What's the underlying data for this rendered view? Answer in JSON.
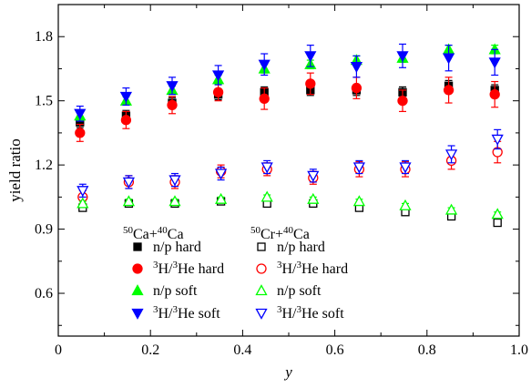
{
  "chart_data": {
    "type": "scatter",
    "xlabel": "y",
    "ylabel": "yield ratio",
    "xlim": [
      0,
      1.0
    ],
    "ylim": [
      0.4,
      1.95
    ],
    "xticks": [
      0,
      0.2,
      0.4,
      0.6,
      0.8,
      1.0
    ],
    "xtick_labels": [
      "0",
      "0.2",
      "0.4",
      "0.6",
      "0.8",
      "1.0"
    ],
    "yticks": [
      0.6,
      0.9,
      1.2,
      1.5,
      1.8
    ],
    "ytick_labels": [
      "0.6",
      "0.9",
      "1.2",
      "1.5",
      "1.8"
    ],
    "grid": false,
    "legend": {
      "placement": "bottom-left",
      "group_titles": [
        {
          "pre": "50",
          "main1": "Ca+",
          "sup2": "40",
          "main2": "Ca"
        },
        {
          "pre": "50",
          "main1": "Cr+",
          "sup2": "40",
          "main2": "Ca"
        }
      ]
    },
    "x": [
      0.05,
      0.15,
      0.25,
      0.35,
      0.45,
      0.55,
      0.65,
      0.75,
      0.85,
      0.95
    ],
    "series": [
      {
        "label": "n/p hard",
        "system": "Ca",
        "marker": "square",
        "filled": true,
        "color": "#000000",
        "values": [
          1.4,
          1.43,
          1.49,
          1.53,
          1.54,
          1.55,
          1.55,
          1.54,
          1.57,
          1.55
        ],
        "err": [
          0.025,
          0.025,
          0.025,
          0.025,
          0.025,
          0.025,
          0.025,
          0.025,
          0.025,
          0.025
        ]
      },
      {
        "label": "³H/³He hard",
        "label_parts": {
          "sup1": "3",
          "m1": "H/",
          "sup2": "3",
          "m2": "He hard"
        },
        "system": "Ca",
        "marker": "circle",
        "filled": true,
        "color": "#ff0000",
        "values": [
          1.35,
          1.41,
          1.48,
          1.54,
          1.51,
          1.58,
          1.56,
          1.5,
          1.55,
          1.53
        ],
        "err": [
          0.04,
          0.04,
          0.04,
          0.04,
          0.05,
          0.05,
          0.05,
          0.05,
          0.06,
          0.06
        ]
      },
      {
        "label": "n/p soft",
        "system": "Ca",
        "marker": "triangle-up",
        "filled": true,
        "color": "#00ff00",
        "values": [
          1.43,
          1.5,
          1.55,
          1.6,
          1.65,
          1.67,
          1.69,
          1.7,
          1.74,
          1.74
        ],
        "err": [
          0.02,
          0.02,
          0.02,
          0.02,
          0.02,
          0.02,
          0.02,
          0.02,
          0.02,
          0.02
        ]
      },
      {
        "label": "³H/³He soft",
        "label_parts": {
          "sup1": "3",
          "m1": "H/",
          "sup2": "3",
          "m2": "He soft"
        },
        "system": "Ca",
        "marker": "triangle-down",
        "filled": true,
        "color": "#0000ff",
        "values": [
          1.44,
          1.52,
          1.57,
          1.62,
          1.67,
          1.71,
          1.66,
          1.71,
          1.7,
          1.68
        ],
        "err": [
          0.035,
          0.04,
          0.04,
          0.045,
          0.05,
          0.05,
          0.05,
          0.055,
          0.06,
          0.06
        ]
      },
      {
        "label": "n/p hard",
        "system": "Cr",
        "marker": "square",
        "filled": false,
        "color": "#000000",
        "values": [
          1.0,
          1.02,
          1.02,
          1.03,
          1.02,
          1.02,
          1.0,
          0.98,
          0.96,
          0.93
        ],
        "err": [
          0.015,
          0.015,
          0.015,
          0.015,
          0.015,
          0.015,
          0.015,
          0.015,
          0.015,
          0.015
        ]
      },
      {
        "label": "³H/³He hard",
        "label_parts": {
          "sup1": "3",
          "m1": "H/",
          "sup2": "3",
          "m2": "He hard"
        },
        "system": "Cr",
        "marker": "circle",
        "filled": false,
        "color": "#ff0000",
        "values": [
          1.05,
          1.12,
          1.12,
          1.17,
          1.18,
          1.14,
          1.18,
          1.18,
          1.22,
          1.26
        ],
        "err": [
          0.03,
          0.03,
          0.03,
          0.03,
          0.03,
          0.03,
          0.035,
          0.035,
          0.04,
          0.05
        ]
      },
      {
        "label": "n/p soft",
        "system": "Cr",
        "marker": "triangle-up",
        "filled": false,
        "color": "#00ff00",
        "values": [
          1.02,
          1.03,
          1.03,
          1.04,
          1.05,
          1.04,
          1.03,
          1.01,
          0.99,
          0.97
        ],
        "err": [
          0.01,
          0.01,
          0.01,
          0.01,
          0.01,
          0.01,
          0.01,
          0.01,
          0.01,
          0.01
        ]
      },
      {
        "label": "³H/³He soft",
        "label_parts": {
          "sup1": "3",
          "m1": "H/",
          "sup2": "3",
          "m2": "He soft"
        },
        "system": "Cr",
        "marker": "triangle-down",
        "filled": false,
        "color": "#0000ff",
        "values": [
          1.08,
          1.12,
          1.13,
          1.16,
          1.19,
          1.15,
          1.19,
          1.19,
          1.25,
          1.32
        ],
        "err": [
          0.03,
          0.03,
          0.03,
          0.03,
          0.03,
          0.03,
          0.03,
          0.03,
          0.04,
          0.045
        ]
      }
    ]
  }
}
